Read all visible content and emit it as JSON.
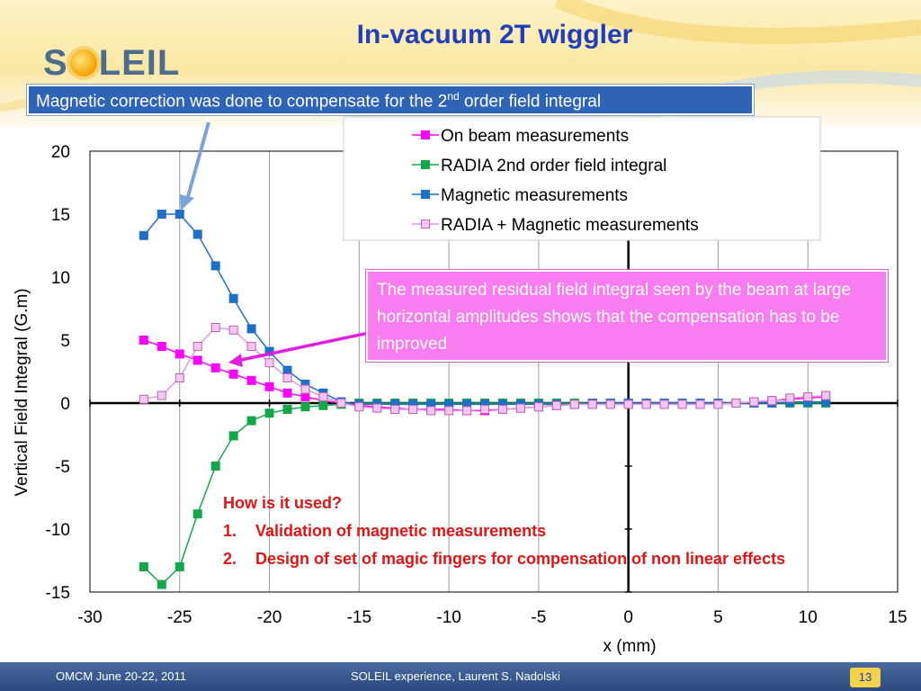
{
  "slide": {
    "logo_text_left": "S",
    "logo_text_right": "LEIL",
    "title": "In-vacuum 2T wiggler",
    "banner_pre": "Magnetic correction was done to compensate for the 2",
    "banner_sup": "nd",
    "banner_post": " order field integral",
    "callout": "The measured residual field integral seen by the beam at large horizontal amplitudes shows that the compensation has to be improved",
    "note_heading": "How is it used?",
    "note_items": [
      {
        "num": "1.",
        "text": "Validation of magnetic measurements"
      },
      {
        "num": "2.",
        "text": "Design of set of magic fingers for compensation of non linear effects"
      }
    ],
    "footer_left": "OMCM June 20-22, 2011",
    "footer_mid": "SOLEIL experience, Laurent S. Nadolski",
    "page_number": "13",
    "colors": {
      "title": "#1f3fbf",
      "banner": "#2e63b5",
      "callout": "#f97df0",
      "note": "#e11414"
    }
  },
  "chart_data": {
    "type": "line",
    "title": "",
    "xlabel": "x (mm)",
    "ylabel": "Vertical Field Integral (G.m)",
    "xlim": [
      -30,
      15
    ],
    "ylim": [
      -15,
      20
    ],
    "xticks": [
      -30,
      -25,
      -20,
      -15,
      -10,
      -5,
      0,
      5,
      10,
      15
    ],
    "yticks": [
      20,
      15,
      10,
      5,
      0,
      -5,
      -10,
      -15
    ],
    "grid": "vertical",
    "legend_position": "top-right",
    "series": [
      {
        "name": "On beam measurements",
        "color": "#ff00ff",
        "marker": "filled-square",
        "x": [
          -27,
          -26,
          -25,
          -24,
          -23,
          -22,
          -21,
          -20,
          -19,
          -18,
          -17,
          -16,
          -15,
          -14,
          -13,
          -12,
          -11,
          -10,
          -9,
          -8,
          -7,
          -6,
          -5,
          -4,
          -3,
          -2,
          -1,
          0,
          1,
          2,
          3,
          4,
          5,
          6,
          7,
          8,
          9,
          10,
          11
        ],
        "y": [
          5.0,
          4.5,
          3.9,
          3.4,
          2.8,
          2.3,
          1.8,
          1.3,
          0.8,
          0.5,
          0.2,
          0.0,
          -0.2,
          -0.3,
          -0.4,
          -0.5,
          -0.5,
          -0.5,
          -0.6,
          -0.6,
          -0.5,
          -0.4,
          -0.3,
          -0.2,
          -0.1,
          0.0,
          0.0,
          0.0,
          0.0,
          0.0,
          0.0,
          0.0,
          0.0,
          0.0,
          0.1,
          0.2,
          0.3,
          0.4,
          0.5
        ]
      },
      {
        "name": "RADIA 2nd order field integral",
        "color": "#12a84a",
        "marker": "filled-square",
        "x": [
          -27,
          -26,
          -25,
          -24,
          -23,
          -22,
          -21,
          -20,
          -19,
          -18,
          -17,
          -16,
          -15,
          -14,
          -13,
          -12,
          -11,
          -10,
          -9,
          -8,
          -7,
          -6,
          -5,
          -4,
          -3,
          -2,
          -1,
          0,
          1,
          2,
          3,
          4,
          5,
          6,
          7,
          8,
          9,
          10,
          11
        ],
        "y": [
          -13.0,
          -14.4,
          -13.0,
          -8.8,
          -5.0,
          -2.6,
          -1.4,
          -0.8,
          -0.5,
          -0.3,
          -0.2,
          -0.1,
          0.0,
          0.0,
          0.0,
          0.0,
          0.0,
          0.0,
          0.0,
          0.0,
          0.0,
          0.0,
          0.0,
          0.0,
          0.0,
          0.0,
          0.0,
          0.0,
          0.0,
          0.0,
          0.0,
          0.0,
          0.0,
          0.0,
          0.0,
          0.0,
          0.0,
          0.0,
          0.0
        ]
      },
      {
        "name": "Magnetic measurements",
        "color": "#1f6fc8",
        "marker": "filled-square",
        "x": [
          -27,
          -26,
          -25,
          -24,
          -23,
          -22,
          -21,
          -20,
          -19,
          -18,
          -17,
          -16,
          -15,
          -14,
          -13,
          -12,
          -11,
          -10,
          -9,
          -8,
          -7,
          -6,
          -5,
          -4,
          -3,
          -2,
          -1,
          0,
          1,
          2,
          3,
          4,
          5,
          6,
          7,
          8,
          9,
          10,
          11
        ],
        "y": [
          13.3,
          15.0,
          15.0,
          13.4,
          10.9,
          8.3,
          5.9,
          4.1,
          2.6,
          1.5,
          0.8,
          0.1,
          -0.1,
          -0.1,
          -0.1,
          -0.1,
          -0.1,
          -0.1,
          -0.1,
          -0.1,
          -0.1,
          -0.1,
          -0.1,
          -0.1,
          -0.1,
          0.0,
          0.0,
          0.0,
          0.0,
          0.0,
          0.0,
          0.0,
          0.0,
          0.0,
          0.0,
          0.0,
          0.1,
          0.1,
          0.1
        ]
      },
      {
        "name": "RADIA + Magnetic measurements",
        "color": "#e596e0",
        "marker": "open-square",
        "x": [
          -27,
          -26,
          -25,
          -24,
          -23,
          -22,
          -21,
          -20,
          -19,
          -18,
          -17,
          -16,
          -15,
          -14,
          -13,
          -12,
          -11,
          -10,
          -9,
          -8,
          -7,
          -6,
          -5,
          -4,
          -3,
          -2,
          -1,
          0,
          1,
          2,
          3,
          4,
          5,
          6,
          7,
          8,
          9,
          10,
          11
        ],
        "y": [
          0.3,
          0.6,
          2.0,
          4.5,
          6.0,
          5.8,
          4.5,
          3.2,
          2.0,
          1.1,
          0.5,
          0.0,
          -0.3,
          -0.4,
          -0.5,
          -0.5,
          -0.6,
          -0.6,
          -0.6,
          -0.5,
          -0.5,
          -0.4,
          -0.3,
          -0.2,
          -0.1,
          -0.1,
          -0.1,
          -0.1,
          -0.1,
          -0.1,
          -0.1,
          -0.1,
          -0.1,
          0.0,
          0.1,
          0.2,
          0.4,
          0.5,
          0.6
        ]
      }
    ]
  }
}
